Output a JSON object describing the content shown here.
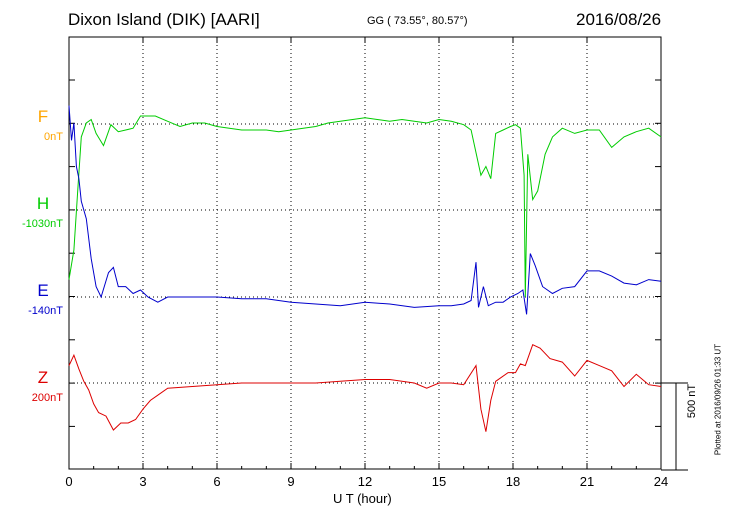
{
  "header": {
    "title": "Dixon Island (DIK)  [AARI]",
    "coords": "GG ( 73.55°,  80.57°)",
    "date": "2016/08/26"
  },
  "channels": [
    {
      "id": "F",
      "label": "F",
      "base": "0nT",
      "color": "#ffa500"
    },
    {
      "id": "H",
      "label": "H",
      "base": "-1030nT",
      "color": "#00cc00"
    },
    {
      "id": "E",
      "label": "E",
      "base": "-140nT",
      "color": "#0000cc"
    },
    {
      "id": "Z",
      "label": "Z",
      "base": "200nT",
      "color": "#dd0000"
    }
  ],
  "scale_bar": "500 nT",
  "plotted": "Plotted at 2016/09/26 01:33 UT",
  "chart_data": {
    "type": "line",
    "xlabel": "U T (hour)",
    "xlim": [
      0,
      24
    ],
    "xticks": [
      0,
      3,
      6,
      9,
      12,
      15,
      18,
      21,
      24
    ],
    "unit": "nT",
    "grid": true,
    "series": [
      {
        "name": "H",
        "color": "#00cc00",
        "baseline": -1030,
        "x": [
          0,
          0.2,
          0.35,
          0.5,
          0.7,
          0.9,
          1.1,
          1.4,
          1.7,
          2.0,
          2.3,
          2.6,
          2.9,
          3.2,
          3.5,
          4,
          4.5,
          5,
          5.5,
          6,
          6.5,
          7,
          7.5,
          8,
          8.5,
          9,
          9.5,
          10,
          10.5,
          11,
          11.5,
          12,
          12.5,
          13,
          13.5,
          14,
          14.5,
          15,
          15.5,
          16,
          16.3,
          16.5,
          16.7,
          16.9,
          17.1,
          17.3,
          17.6,
          17.9,
          18.1,
          18.3,
          18.45,
          18.5,
          18.6,
          18.8,
          19.0,
          19.3,
          19.6,
          20,
          20.5,
          21,
          21.5,
          22,
          22.5,
          23,
          23.5,
          24
        ],
        "values": [
          -400,
          -230,
          100,
          420,
          500,
          520,
          440,
          370,
          490,
          450,
          460,
          470,
          540,
          540,
          540,
          510,
          480,
          500,
          500,
          480,
          470,
          460,
          460,
          460,
          450,
          460,
          470,
          480,
          500,
          510,
          520,
          530,
          520,
          510,
          520,
          510,
          500,
          520,
          510,
          490,
          460,
          330,
          200,
          250,
          180,
          440,
          460,
          480,
          490,
          470,
          200,
          -500,
          320,
          60,
          110,
          320,
          420,
          470,
          440,
          460,
          460,
          360,
          420,
          450,
          470,
          420
        ]
      },
      {
        "name": "E",
        "color": "#0000cc",
        "baseline": -140,
        "x": [
          0,
          0.1,
          0.2,
          0.3,
          0.4,
          0.5,
          0.7,
          0.9,
          1.1,
          1.3,
          1.6,
          1.8,
          2.0,
          2.3,
          2.6,
          2.9,
          3.2,
          3.6,
          4,
          5,
          6,
          7,
          8,
          9,
          10,
          11,
          12,
          13,
          14,
          15,
          15.5,
          16,
          16.3,
          16.5,
          16.6,
          16.8,
          17.0,
          17.3,
          17.6,
          17.9,
          18.2,
          18.4,
          18.55,
          18.7,
          18.9,
          19.2,
          19.6,
          20,
          20.5,
          21,
          21.5,
          22,
          22.5,
          23,
          23.5,
          24
        ],
        "values": [
          1100,
          900,
          1000,
          750,
          680,
          550,
          450,
          220,
          60,
          0,
          140,
          170,
          60,
          60,
          20,
          40,
          0,
          -30,
          0,
          0,
          0,
          -10,
          -10,
          -30,
          -40,
          -50,
          -30,
          -40,
          -60,
          -50,
          -50,
          -40,
          -20,
          200,
          -60,
          60,
          -50,
          -30,
          -30,
          0,
          20,
          40,
          -100,
          250,
          180,
          60,
          20,
          50,
          60,
          150,
          150,
          120,
          80,
          70,
          100,
          90
        ]
      },
      {
        "name": "Z",
        "color": "#dd0000",
        "baseline": 200,
        "x": [
          0,
          0.2,
          0.4,
          0.6,
          0.8,
          1.0,
          1.2,
          1.5,
          1.8,
          2.1,
          2.4,
          2.7,
          3.0,
          3.3,
          3.6,
          4,
          5,
          6,
          7,
          8,
          9,
          10,
          11,
          12,
          13,
          14,
          14.5,
          15,
          15.5,
          16,
          16.5,
          16.7,
          16.9,
          17.1,
          17.3,
          17.5,
          17.8,
          18.1,
          18.3,
          18.5,
          18.8,
          19.1,
          19.5,
          20,
          20.5,
          21,
          21.5,
          22,
          22.5,
          23,
          23.5,
          24
        ],
        "values": [
          100,
          160,
          80,
          10,
          -40,
          -120,
          -170,
          -190,
          -270,
          -230,
          -230,
          -210,
          -150,
          -100,
          -70,
          -30,
          -20,
          -10,
          0,
          0,
          0,
          0,
          10,
          20,
          20,
          0,
          -30,
          0,
          0,
          -10,
          100,
          -150,
          -280,
          -100,
          10,
          30,
          60,
          60,
          110,
          100,
          220,
          200,
          140,
          120,
          40,
          130,
          100,
          70,
          -20,
          50,
          -10,
          -20
        ]
      }
    ]
  }
}
